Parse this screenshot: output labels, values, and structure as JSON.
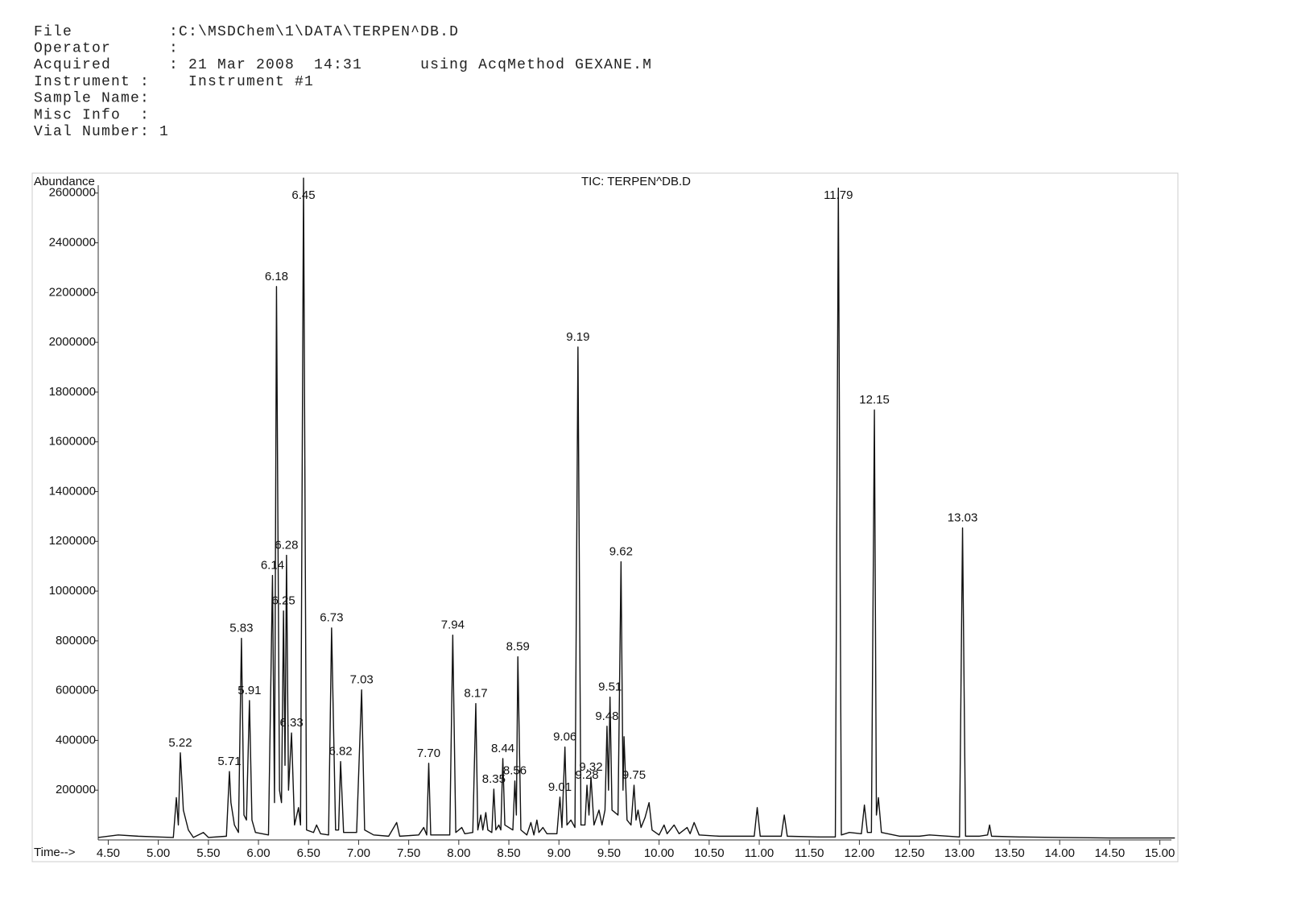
{
  "header": {
    "lines": [
      "File          :C:\\MSDChem\\1\\DATA\\TERPEN^DB.D",
      "Operator      :",
      "Acquired      : 21 Mar 2008  14:31      using AcqMethod GEXANE.M",
      "Instrument :    Instrument #1",
      "Sample Name:",
      "Misc Info  :",
      "Vial Number: 1"
    ]
  },
  "chart_data": {
    "type": "line",
    "title": "TIC: TERPEN^DB.D",
    "y_label": "Abundance",
    "x_label": "Time-->",
    "color": "#111111",
    "xlim": [
      4.4,
      15.18
    ],
    "ylim": [
      0,
      2680000
    ],
    "xticks": [
      {
        "value": 4.5,
        "label": "4.50"
      },
      {
        "value": 5,
        "label": "5.00"
      },
      {
        "value": 5.5,
        "label": "5.50"
      },
      {
        "value": 6,
        "label": "6.00"
      },
      {
        "value": 6.5,
        "label": "6.50"
      },
      {
        "value": 7,
        "label": "7.00"
      },
      {
        "value": 7.5,
        "label": "7.50"
      },
      {
        "value": 8,
        "label": "8.00"
      },
      {
        "value": 8.5,
        "label": "8.50"
      },
      {
        "value": 9,
        "label": "9.00"
      },
      {
        "value": 9.5,
        "label": "9.50"
      },
      {
        "value": 10,
        "label": "10.00"
      },
      {
        "value": 10.5,
        "label": "10.50"
      },
      {
        "value": 11,
        "label": "11.00"
      },
      {
        "value": 11.5,
        "label": "11.50"
      },
      {
        "value": 12,
        "label": "12.00"
      },
      {
        "value": 12.5,
        "label": "12.50"
      },
      {
        "value": 13,
        "label": "13.00"
      },
      {
        "value": 13.5,
        "label": "13.50"
      },
      {
        "value": 14,
        "label": "14.00"
      },
      {
        "value": 14.5,
        "label": "14.50"
      },
      {
        "value": 15,
        "label": "15.00"
      }
    ],
    "yticks": [
      200000,
      400000,
      600000,
      800000,
      1000000,
      1200000,
      1400000,
      1600000,
      1800000,
      2000000,
      2200000,
      2400000,
      2600000
    ],
    "x": [
      4.4,
      4.6,
      4.8,
      5.0,
      5.15,
      5.18,
      5.2,
      5.22,
      5.25,
      5.3,
      5.35,
      5.45,
      5.5,
      5.68,
      5.71,
      5.725,
      5.76,
      5.8,
      5.83,
      5.855,
      5.88,
      5.91,
      5.935,
      5.97,
      6.1,
      6.14,
      6.16,
      6.18,
      6.21,
      6.23,
      6.25,
      6.265,
      6.28,
      6.3,
      6.33,
      6.36,
      6.4,
      6.42,
      6.45,
      6.48,
      6.55,
      6.58,
      6.62,
      6.7,
      6.73,
      6.77,
      6.8,
      6.82,
      6.85,
      6.98,
      7.03,
      7.06,
      7.15,
      7.3,
      7.38,
      7.41,
      7.6,
      7.65,
      7.68,
      7.7,
      7.72,
      7.91,
      7.94,
      7.97,
      8.03,
      8.06,
      8.14,
      8.17,
      8.19,
      8.22,
      8.24,
      8.27,
      8.29,
      8.33,
      8.35,
      8.37,
      8.4,
      8.42,
      8.44,
      8.46,
      8.54,
      8.56,
      8.575,
      8.59,
      8.62,
      8.68,
      8.72,
      8.75,
      8.78,
      8.8,
      8.84,
      8.88,
      8.98,
      9.01,
      9.03,
      9.06,
      9.08,
      9.12,
      9.16,
      9.19,
      9.22,
      9.26,
      9.28,
      9.3,
      9.32,
      9.35,
      9.4,
      9.43,
      9.46,
      9.48,
      9.495,
      9.51,
      9.53,
      9.59,
      9.62,
      9.64,
      9.65,
      9.68,
      9.72,
      9.75,
      9.77,
      9.79,
      9.82,
      9.86,
      9.9,
      9.93,
      10.0,
      10.05,
      10.08,
      10.15,
      10.2,
      10.28,
      10.31,
      10.35,
      10.4,
      10.6,
      10.8,
      10.95,
      10.98,
      11.01,
      11.22,
      11.25,
      11.28,
      11.6,
      11.76,
      11.79,
      11.82,
      11.9,
      12.02,
      12.05,
      12.08,
      12.12,
      12.15,
      12.17,
      12.19,
      12.22,
      12.4,
      12.6,
      12.7,
      13.0,
      13.03,
      13.06,
      13.2,
      13.28,
      13.3,
      13.32,
      13.6,
      14.0,
      14.5,
      15.0,
      15.15
    ],
    "values": [
      10000,
      20000,
      15000,
      12000,
      10000,
      170000,
      60000,
      350000,
      120000,
      40000,
      10000,
      30000,
      10000,
      15000,
      275000,
      150000,
      60000,
      30000,
      810000,
      100000,
      80000,
      560000,
      80000,
      30000,
      20000,
      1063000,
      150000,
      2224000,
      200000,
      150000,
      920000,
      300000,
      1144000,
      200000,
      430000,
      60000,
      130000,
      60000,
      2660000,
      40000,
      30000,
      60000,
      25000,
      20000,
      852000,
      40000,
      40000,
      315000,
      30000,
      30000,
      603000,
      40000,
      20000,
      15000,
      70000,
      15000,
      20000,
      50000,
      20000,
      308000,
      20000,
      20000,
      823000,
      30000,
      50000,
      25000,
      30000,
      548000,
      40000,
      100000,
      40000,
      110000,
      40000,
      30000,
      204000,
      40000,
      60000,
      40000,
      327000,
      60000,
      40000,
      237000,
      100000,
      736000,
      40000,
      20000,
      70000,
      20000,
      80000,
      30000,
      50000,
      25000,
      25000,
      172000,
      50000,
      373000,
      60000,
      80000,
      50000,
      1981000,
      60000,
      60000,
      220000,
      100000,
      253000,
      60000,
      120000,
      60000,
      120000,
      457000,
      200000,
      574000,
      120000,
      100000,
      1118000,
      200000,
      415000,
      80000,
      60000,
      220000,
      80000,
      120000,
      50000,
      90000,
      150000,
      40000,
      20000,
      60000,
      25000,
      60000,
      25000,
      50000,
      25000,
      70000,
      20000,
      15000,
      15000,
      15000,
      130000,
      15000,
      15000,
      100000,
      15000,
      12000,
      12000,
      2620000,
      20000,
      30000,
      25000,
      140000,
      30000,
      30000,
      1728000,
      100000,
      170000,
      30000,
      15000,
      15000,
      20000,
      12000,
      1254000,
      15000,
      15000,
      20000,
      60000,
      15000,
      12000,
      10000,
      8000,
      8000,
      8000
    ],
    "peak_labels": [
      {
        "x": 5.22,
        "label": "5.22"
      },
      {
        "x": 5.71,
        "label": "5.71"
      },
      {
        "x": 5.83,
        "label": "5.83"
      },
      {
        "x": 5.91,
        "label": "5.91"
      },
      {
        "x": 6.14,
        "label": "6.14"
      },
      {
        "x": 6.18,
        "label": "6.18"
      },
      {
        "x": 6.25,
        "label": "6.25"
      },
      {
        "x": 6.28,
        "label": "6.28"
      },
      {
        "x": 6.33,
        "label": "6.33"
      },
      {
        "x": 6.45,
        "label": "6.45"
      },
      {
        "x": 6.73,
        "label": "6.73"
      },
      {
        "x": 6.82,
        "label": "6.82"
      },
      {
        "x": 7.03,
        "label": "7.03"
      },
      {
        "x": 7.7,
        "label": "7.70"
      },
      {
        "x": 7.94,
        "label": "7.94"
      },
      {
        "x": 8.17,
        "label": "8.17"
      },
      {
        "x": 8.35,
        "label": "8.35"
      },
      {
        "x": 8.44,
        "label": "8.44"
      },
      {
        "x": 8.56,
        "label": "8.56"
      },
      {
        "x": 8.59,
        "label": "8.59"
      },
      {
        "x": 9.01,
        "label": "9.01"
      },
      {
        "x": 9.06,
        "label": "9.06"
      },
      {
        "x": 9.19,
        "label": "9.19"
      },
      {
        "x": 9.28,
        "label": "9.28"
      },
      {
        "x": 9.32,
        "label": "9.32"
      },
      {
        "x": 9.48,
        "label": "9.48"
      },
      {
        "x": 9.51,
        "label": "9.51"
      },
      {
        "x": 9.62,
        "label": "9.62"
      },
      {
        "x": 9.75,
        "label": "9.75"
      },
      {
        "x": 11.79,
        "label": "11.79"
      },
      {
        "x": 12.15,
        "label": "12.15"
      },
      {
        "x": 13.03,
        "label": "13.03"
      }
    ]
  }
}
